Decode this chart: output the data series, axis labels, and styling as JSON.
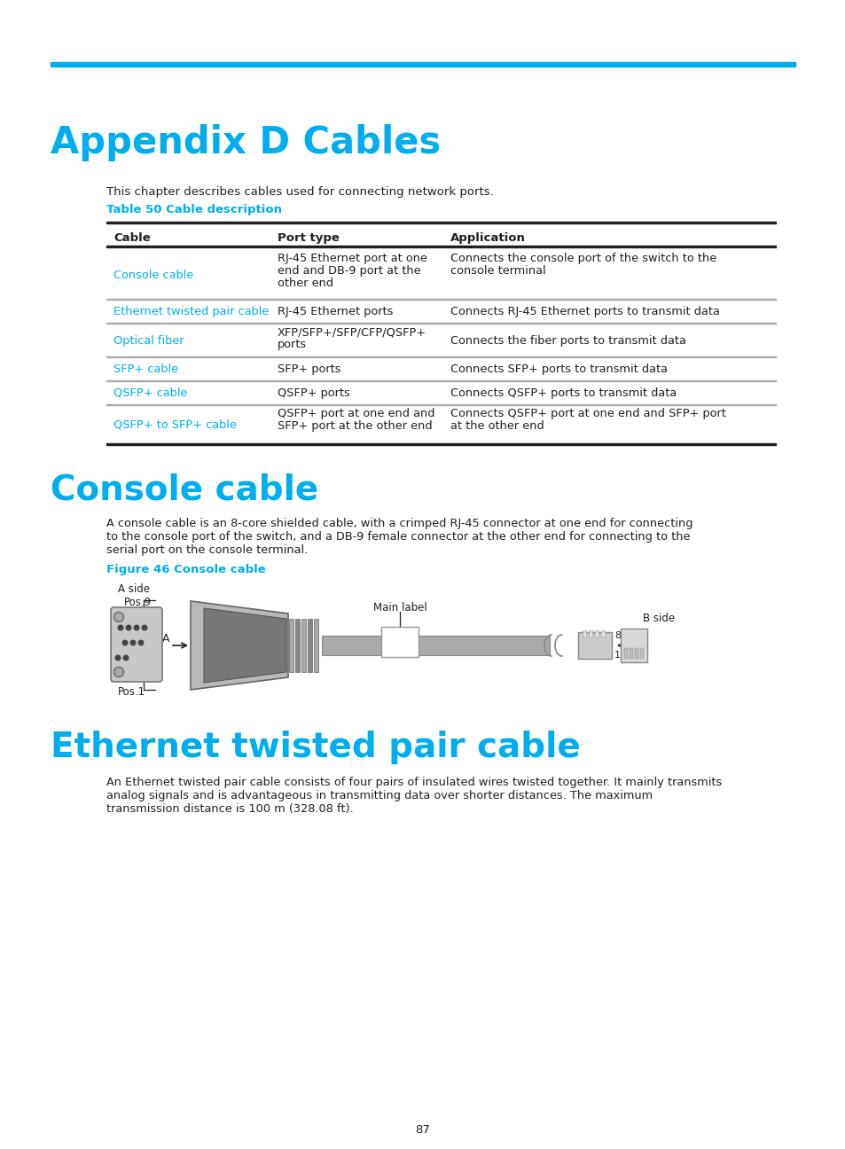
{
  "page_title": "Appendix D Cables",
  "cyan_color": "#00AEEF",
  "dark_color": "#231F20",
  "body_text_color": "#333333",
  "table_caption": "Table 50 Cable description",
  "intro_text": "This chapter describes cables used for connecting network ports.",
  "table_headers": [
    "Cable",
    "Port type",
    "Application"
  ],
  "table_rows": [
    [
      "Console cable",
      "RJ-45 Ethernet port at one\nend and DB-9 port at the\nother end",
      "Connects the console port of the switch to the\nconsole terminal"
    ],
    [
      "Ethernet twisted pair cable",
      "RJ-45 Ethernet ports",
      "Connects RJ-45 Ethernet ports to transmit data"
    ],
    [
      "Optical fiber",
      "XFP/SFP+/SFP/CFP/QSFP+\nports",
      "Connects the fiber ports to transmit data"
    ],
    [
      "SFP+ cable",
      "SFP+ ports",
      "Connects SFP+ ports to transmit data"
    ],
    [
      "QSFP+ cable",
      "QSFP+ ports",
      "Connects QSFP+ ports to transmit data"
    ],
    [
      "QSFP+ to SFP+ cable",
      "QSFP+ port at one end and\nSFP+ port at the other end",
      "Connects QSFP+ port at one end and SFP+ port\nat the other end"
    ]
  ],
  "section1_title": "Console cable",
  "section1_body": "A console cable is an 8-core shielded cable, with a crimped RJ-45 connector at one end for connecting\nto the console port of the switch, and a DB-9 female connector at the other end for connecting to the\nserial port on the console terminal.",
  "fig_caption": "Figure 46 Console cable",
  "section2_title": "Ethernet twisted pair cable",
  "section2_body": "An Ethernet twisted pair cable consists of four pairs of insulated wires twisted together. It mainly transmits\nanalog signals and is advantageous in transmitting data over shorter distances. The maximum\ntransmission distance is 100 m (328.08 ft).",
  "page_number": "87",
  "bg_color": "#FFFFFF",
  "line_color": "#AAAAAA",
  "gray_dark": "#888888",
  "gray_med": "#AAAAAA",
  "gray_light": "#CCCCCC",
  "gray_connector": "#999999"
}
